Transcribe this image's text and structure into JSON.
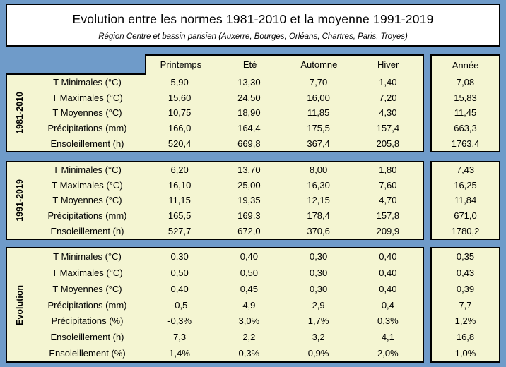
{
  "colors": {
    "background": "#6f9bc9",
    "panel": "#f4f5d2",
    "border": "#000000",
    "title_background": "#ffffff"
  },
  "chart_data": {
    "type": "table",
    "title": "Evolution entre les normes 1981-2010 et la moyenne 1991-2019",
    "subtitle": "Région Centre et bassin parisien (Auxerre, Bourges, Orléans, Chartres, Paris, Troyes)",
    "season_columns": [
      "Printemps",
      "Eté",
      "Automne",
      "Hiver"
    ],
    "year_column": "Année",
    "sections": [
      {
        "label": "1981-2010",
        "rows": [
          {
            "label": "T Minimales (°C)",
            "values": [
              "5,90",
              "13,30",
              "7,70",
              "1,40"
            ],
            "year": "7,08"
          },
          {
            "label": "T Maximales (°C)",
            "values": [
              "15,60",
              "24,50",
              "16,00",
              "7,20"
            ],
            "year": "15,83"
          },
          {
            "label": "T Moyennes (°C)",
            "values": [
              "10,75",
              "18,90",
              "11,85",
              "4,30"
            ],
            "year": "11,45"
          },
          {
            "label": "Précipitations (mm)",
            "values": [
              "166,0",
              "164,4",
              "175,5",
              "157,4"
            ],
            "year": "663,3"
          },
          {
            "label": "Ensoleillement (h)",
            "values": [
              "520,4",
              "669,8",
              "367,4",
              "205,8"
            ],
            "year": "1763,4"
          }
        ]
      },
      {
        "label": "1991-2019",
        "rows": [
          {
            "label": "T Minimales (°C)",
            "values": [
              "6,20",
              "13,70",
              "8,00",
              "1,80"
            ],
            "year": "7,43"
          },
          {
            "label": "T Maximales (°C)",
            "values": [
              "16,10",
              "25,00",
              "16,30",
              "7,60"
            ],
            "year": "16,25"
          },
          {
            "label": "T Moyennes (°C)",
            "values": [
              "11,15",
              "19,35",
              "12,15",
              "4,70"
            ],
            "year": "11,84"
          },
          {
            "label": "Précipitations (mm)",
            "values": [
              "165,5",
              "169,3",
              "178,4",
              "157,8"
            ],
            "year": "671,0"
          },
          {
            "label": "Ensoleillement (h)",
            "values": [
              "527,7",
              "672,0",
              "370,6",
              "209,9"
            ],
            "year": "1780,2"
          }
        ]
      },
      {
        "label": "Evolution",
        "rows": [
          {
            "label": "T Minimales (°C)",
            "values": [
              "0,30",
              "0,40",
              "0,30",
              "0,40"
            ],
            "year": "0,35"
          },
          {
            "label": "T Maximales (°C)",
            "values": [
              "0,50",
              "0,50",
              "0,30",
              "0,40"
            ],
            "year": "0,43"
          },
          {
            "label": "T Moyennes (°C)",
            "values": [
              "0,40",
              "0,45",
              "0,30",
              "0,40"
            ],
            "year": "0,39"
          },
          {
            "label": "Précipitations (mm)",
            "values": [
              "-0,5",
              "4,9",
              "2,9",
              "0,4"
            ],
            "year": "7,7"
          },
          {
            "label": "Précipitations (%)",
            "values": [
              "-0,3%",
              "3,0%",
              "1,7%",
              "0,3%"
            ],
            "year": "1,2%"
          },
          {
            "label": "Ensoleillement (h)",
            "values": [
              "7,3",
              "2,2",
              "3,2",
              "4,1"
            ],
            "year": "16,8"
          },
          {
            "label": "Ensoleillement (%)",
            "values": [
              "1,4%",
              "0,3%",
              "0,9%",
              "2,0%"
            ],
            "year": "1,0%"
          }
        ]
      }
    ]
  }
}
